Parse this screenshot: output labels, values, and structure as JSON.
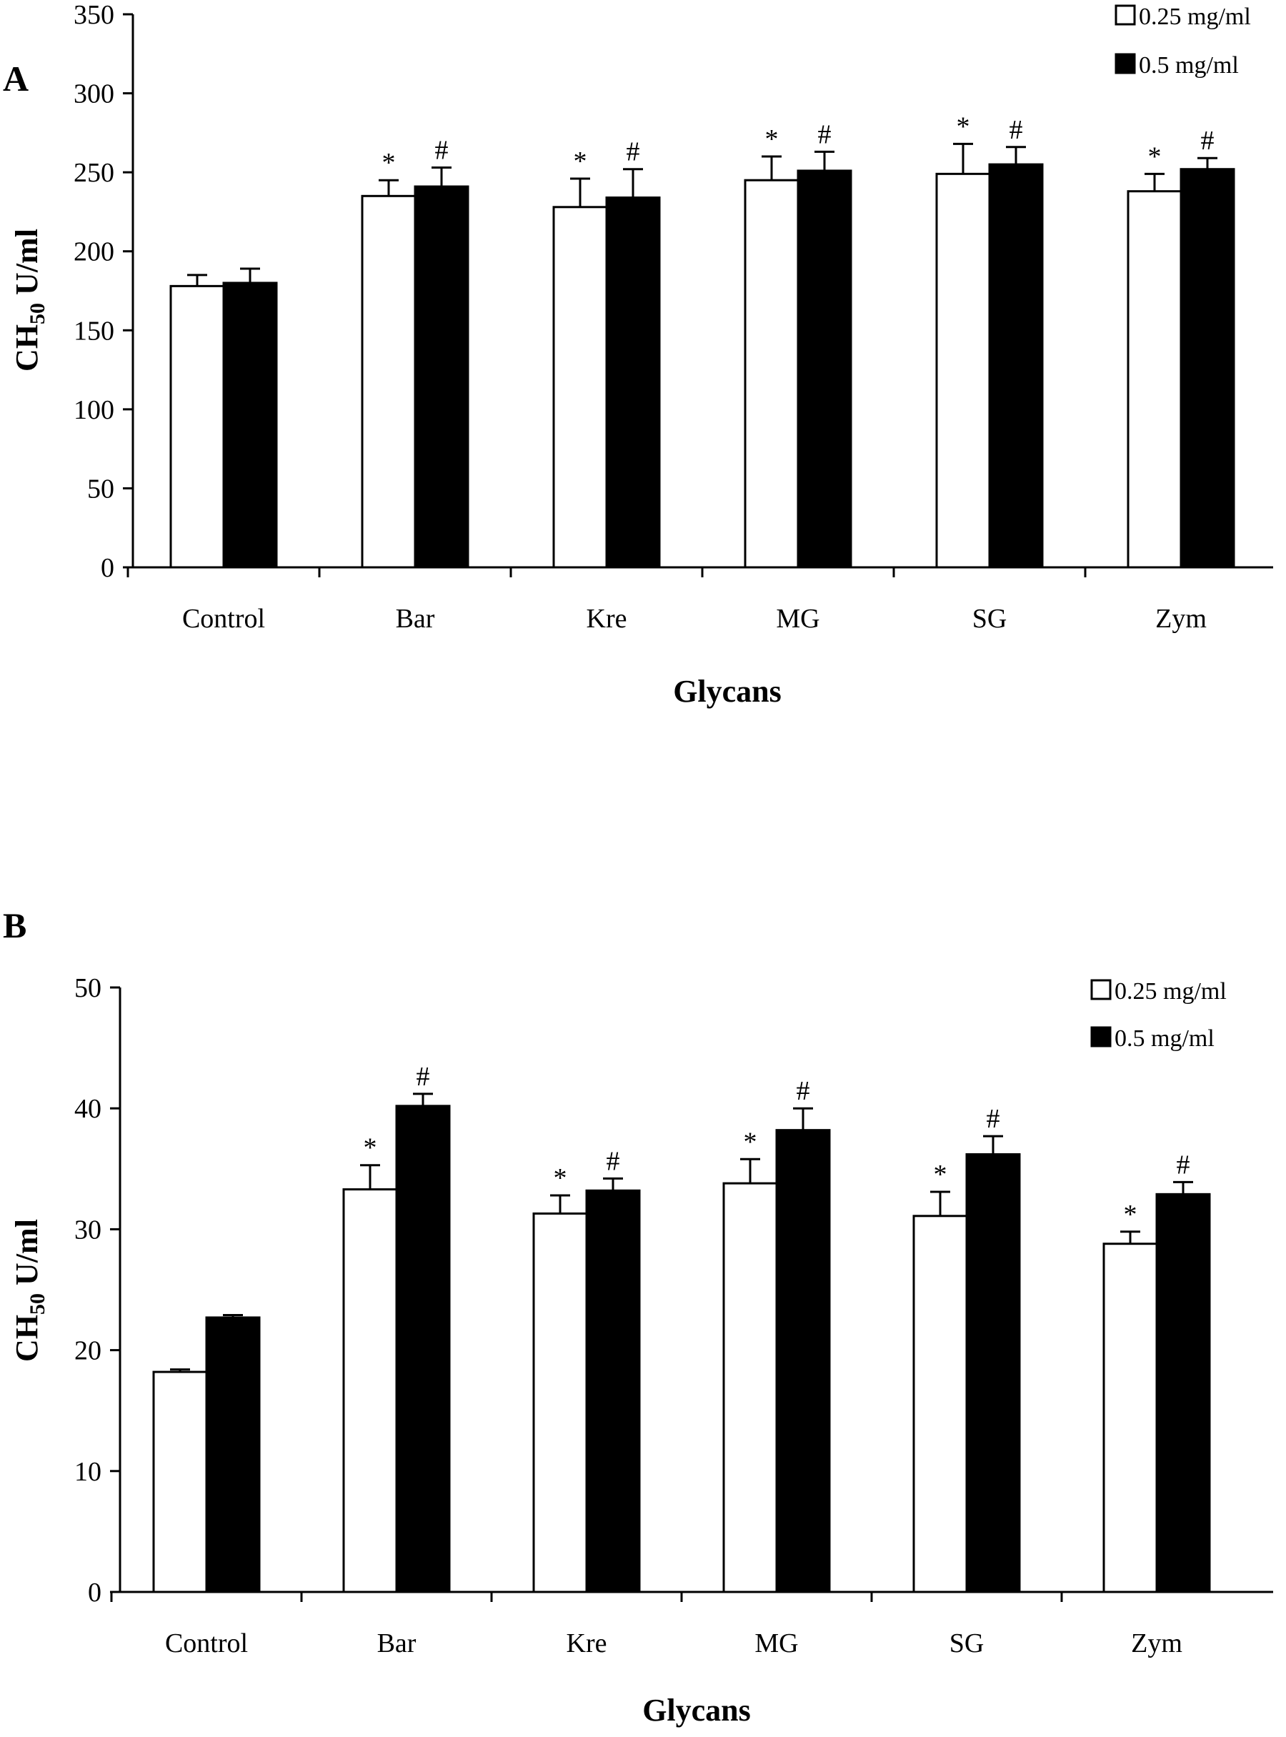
{
  "chart_data": [
    {
      "type": "bar",
      "panel_label": "A",
      "categories": [
        "Control",
        "Bar",
        "Kre",
        "MG",
        "SG",
        "Zym"
      ],
      "series": [
        {
          "name": "0.25 mg/ml",
          "color": "#ffffff",
          "values": [
            178,
            235,
            228,
            245,
            249,
            238
          ],
          "errors": [
            7,
            10,
            18,
            15,
            19,
            11
          ],
          "markers": [
            "",
            "*",
            "*",
            "*",
            "*",
            "*"
          ]
        },
        {
          "name": "0.5 mg/ml",
          "color": "#000000",
          "values": [
            180,
            241,
            234,
            251,
            255,
            252
          ],
          "errors": [
            9,
            12,
            18,
            12,
            11,
            7
          ],
          "markers": [
            "",
            "#",
            "#",
            "#",
            "#",
            "#"
          ]
        }
      ],
      "ylim": [
        0,
        350
      ],
      "yticks": [
        0,
        50,
        100,
        150,
        200,
        250,
        300,
        350
      ],
      "ylabel": "CH",
      "ylabel_sub": "50",
      "ylabel_unit": " U/ml",
      "xlabel": "Glycans",
      "legend_position": "top-right",
      "grid": false
    },
    {
      "type": "bar",
      "panel_label": "B",
      "categories": [
        "Control",
        "Bar",
        "Kre",
        "MG",
        "SG",
        "Zym"
      ],
      "series": [
        {
          "name": "0.25 mg/ml",
          "color": "#ffffff",
          "values": [
            18.2,
            33.3,
            31.3,
            33.8,
            31.1,
            28.8
          ],
          "errors": [
            0.2,
            2.0,
            1.5,
            2.0,
            2.0,
            1.0
          ],
          "markers": [
            "",
            "*",
            "*",
            "*",
            "*",
            "*"
          ]
        },
        {
          "name": "0.5 mg/ml",
          "color": "#000000",
          "values": [
            22.7,
            40.2,
            33.2,
            38.2,
            36.2,
            32.9
          ],
          "errors": [
            0.2,
            1.0,
            1.0,
            1.8,
            1.5,
            1.0
          ],
          "markers": [
            "",
            "#",
            "#",
            "#",
            "#",
            "#"
          ]
        }
      ],
      "ylim": [
        0,
        50
      ],
      "yticks": [
        0,
        10,
        20,
        30,
        40,
        50
      ],
      "ylabel": "CH",
      "ylabel_sub": "50",
      "ylabel_unit": " U/ml",
      "xlabel": "Glycans",
      "legend_position": "top-right",
      "grid": false
    }
  ]
}
